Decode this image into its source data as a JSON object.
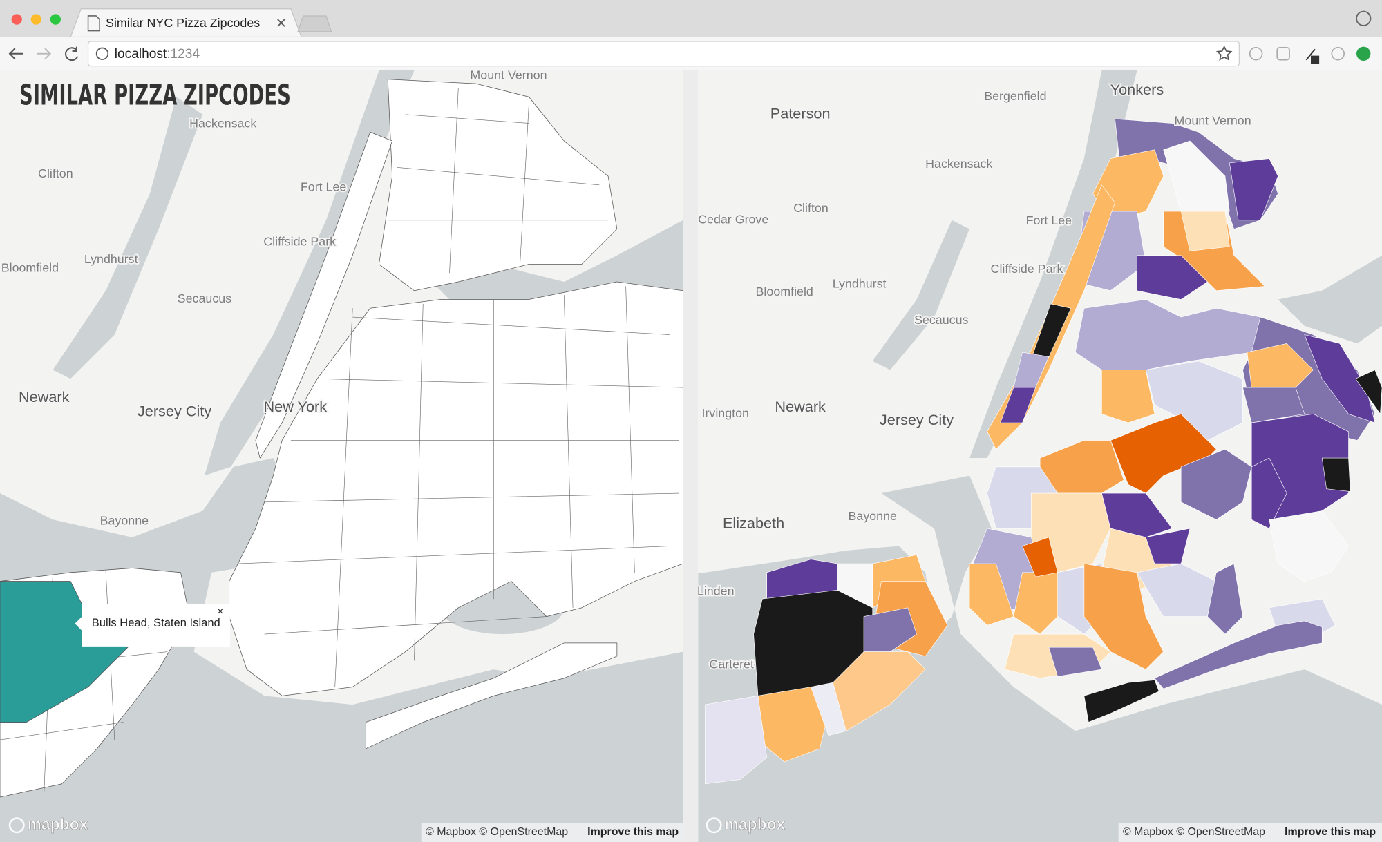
{
  "browser": {
    "tab_title": "Similar NYC Pizza Zipcodes",
    "url_host": "localhost",
    "url_port": ":1234"
  },
  "left_map": {
    "title": "SIMILAR PIZZA ZIPCODES",
    "labels": [
      "Mount Vernon",
      "Hackensack",
      "Clifton",
      "Fort Lee",
      "Cliffside Park",
      "Lyndhurst",
      "Bloomfield",
      "Secaucus",
      "Newark",
      "Jersey City",
      "New York",
      "Bayonne"
    ],
    "popup": {
      "text": "Bulls Head, Staten Island",
      "close": "×"
    },
    "logo": "mapbox",
    "attribution": "© Mapbox © OpenStreetMap",
    "improve_link": "Improve this map"
  },
  "right_map": {
    "labels": [
      "Yonkers",
      "Bergenfield",
      "Paterson",
      "Mount Vernon",
      "Hackensack",
      "Clifton",
      "Cedar Grove",
      "Fort Lee",
      "Cliffside Park",
      "Lyndhurst",
      "Bloomfield",
      "Secaucus",
      "Irvington",
      "Newark",
      "Jersey City",
      "Elizabeth",
      "Bayonne",
      "Linden",
      "Carteret"
    ],
    "logo": "mapbox",
    "attribution": "© Mapbox © OpenStreetMap",
    "improve_link": "Improve this map"
  }
}
